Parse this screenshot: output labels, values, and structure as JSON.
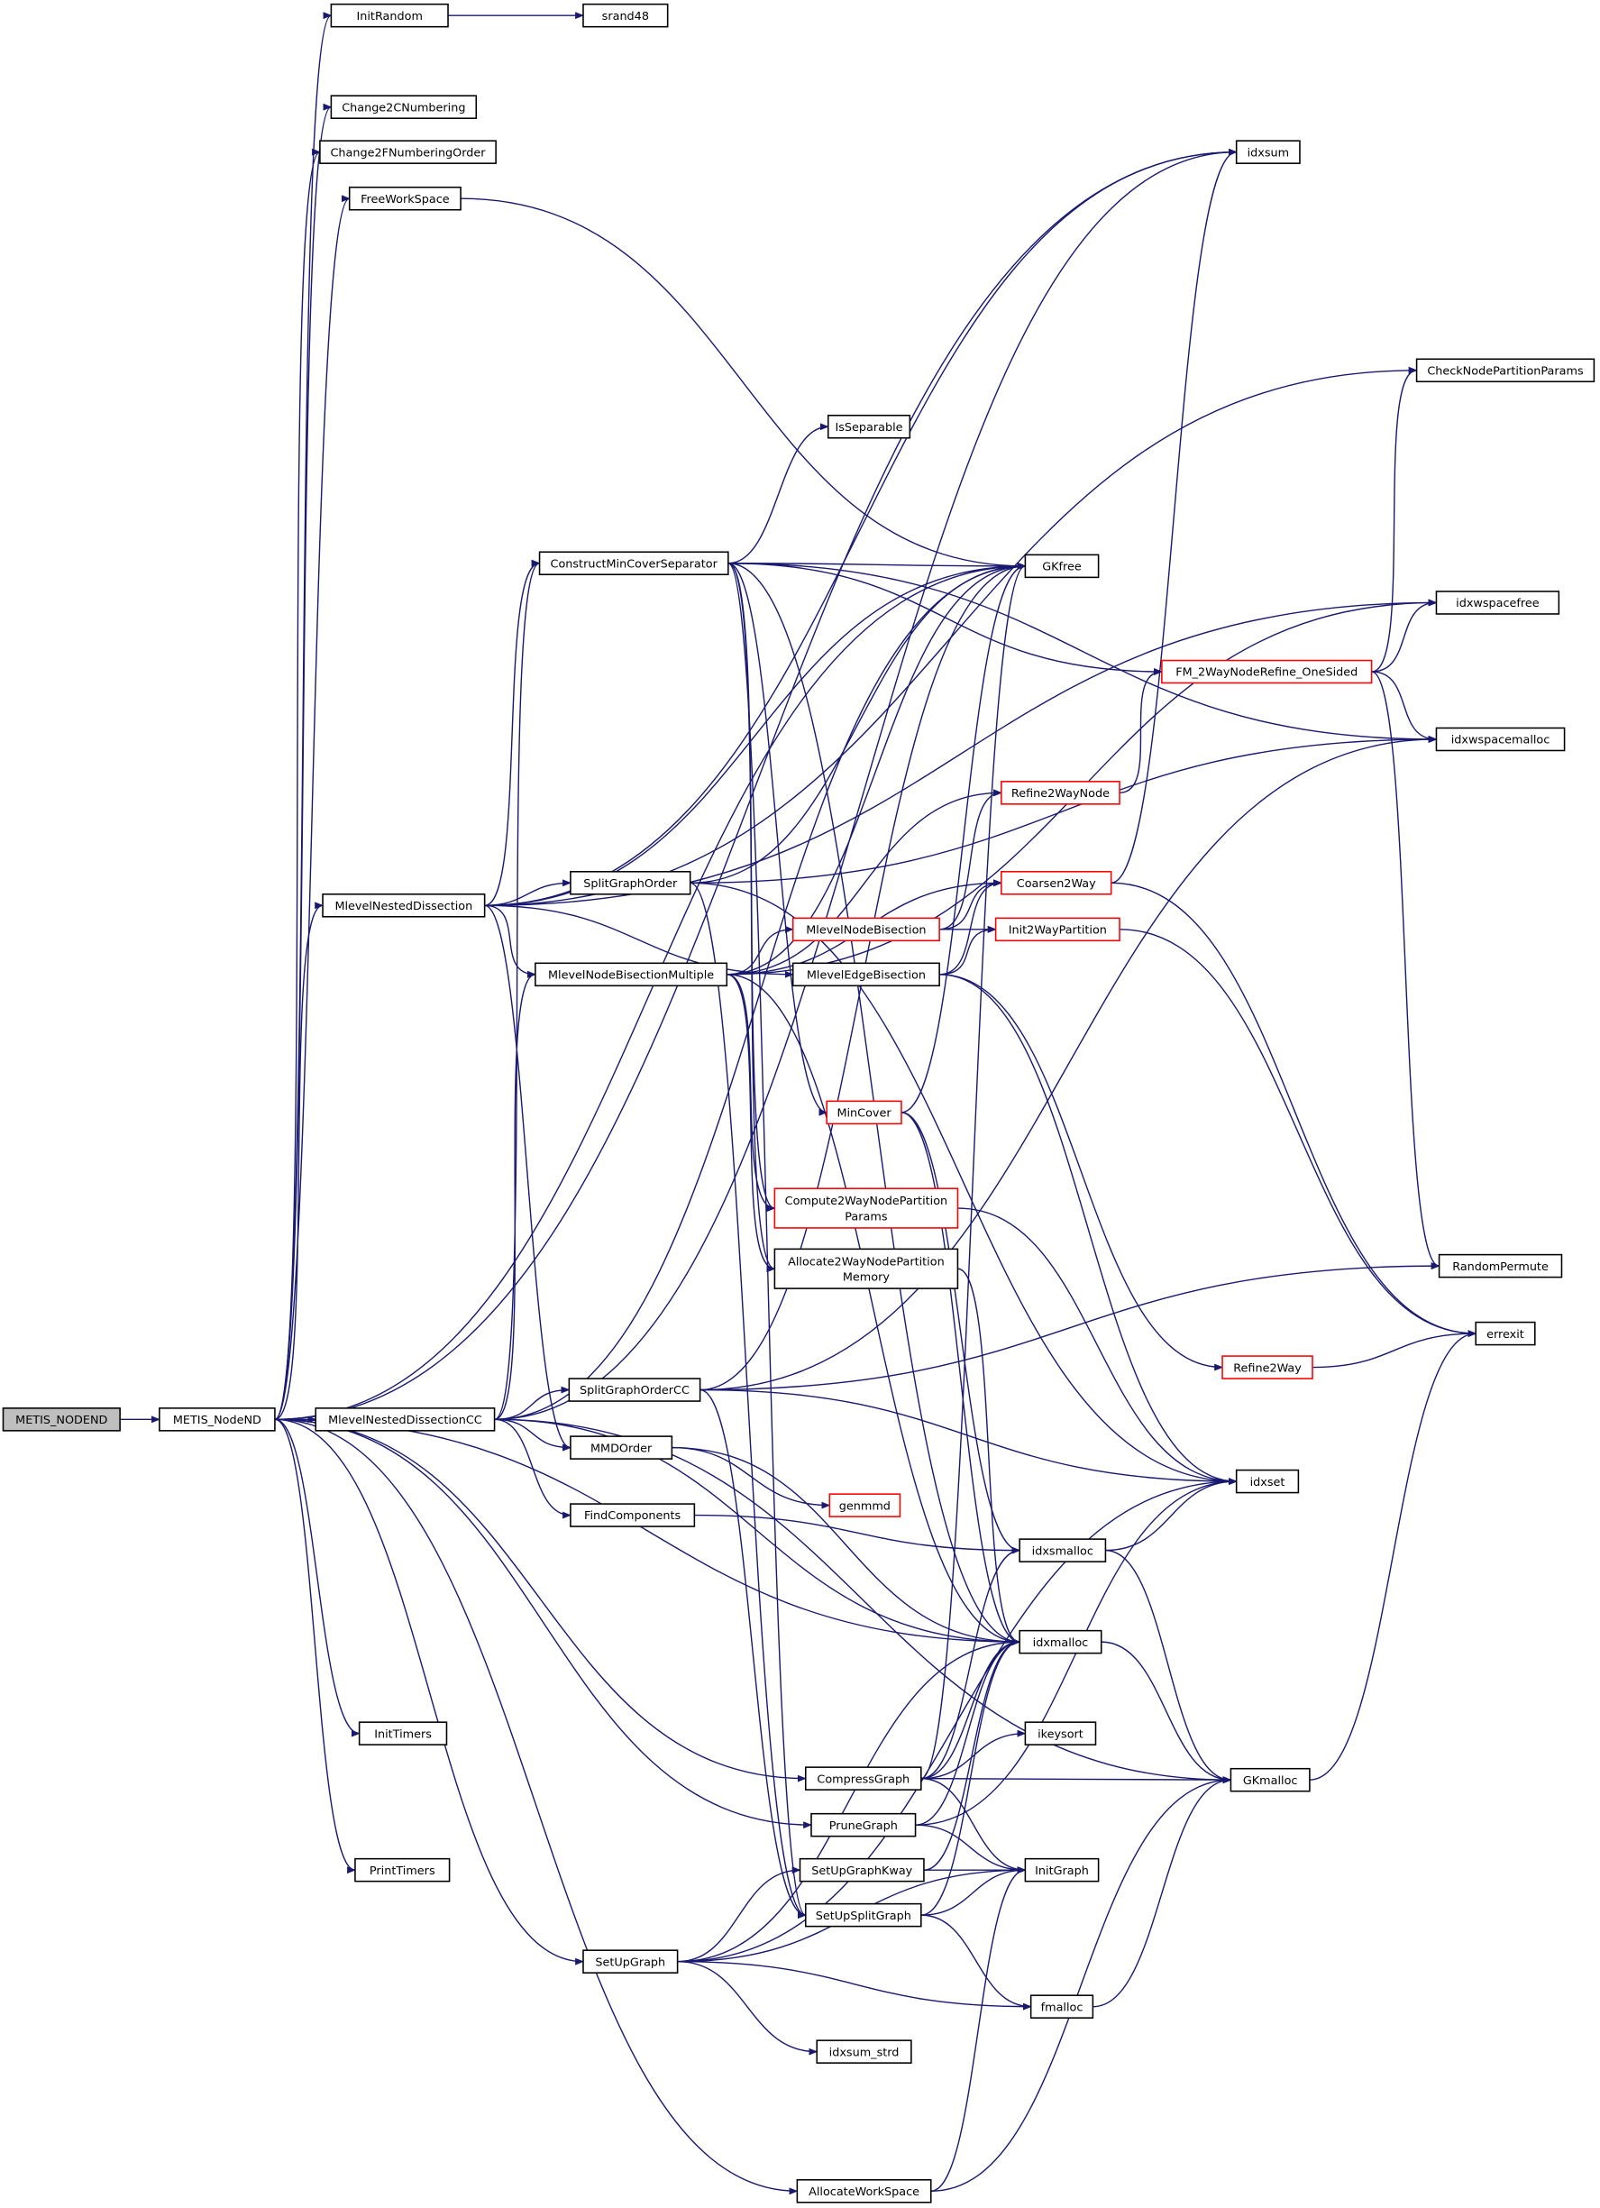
{
  "graph": {
    "type": "call-graph",
    "edge_color": "#191970",
    "highlight_border_color": "#ff0000",
    "root_fill": "#bfbfbf",
    "nodes": [
      {
        "id": "METIS_NODEND",
        "label": [
          "METIS_NODEND"
        ],
        "style": "root"
      },
      {
        "id": "METIS_NodeND",
        "label": [
          "METIS_NodeND"
        ]
      },
      {
        "id": "InitRandom",
        "label": [
          "InitRandom"
        ]
      },
      {
        "id": "srand48",
        "label": [
          "srand48"
        ]
      },
      {
        "id": "Change2CNumbering",
        "label": [
          "Change2CNumbering"
        ]
      },
      {
        "id": "Change2FNumberingOrder",
        "label": [
          "Change2FNumberingOrder"
        ]
      },
      {
        "id": "FreeWorkSpace",
        "label": [
          "FreeWorkSpace"
        ]
      },
      {
        "id": "idxsum",
        "label": [
          "idxsum"
        ]
      },
      {
        "id": "CheckNodePartitionParams",
        "label": [
          "CheckNodePartitionParams"
        ]
      },
      {
        "id": "IsSeparable",
        "label": [
          "IsSeparable"
        ]
      },
      {
        "id": "ConstructMinCoverSeparator",
        "label": [
          "ConstructMinCoverSeparator"
        ]
      },
      {
        "id": "GKfree",
        "label": [
          "GKfree"
        ]
      },
      {
        "id": "idxwspacefree",
        "label": [
          "idxwspacefree"
        ]
      },
      {
        "id": "FM_2WayNodeRefine_OneSided",
        "label": [
          "FM_2WayNodeRefine_OneSided"
        ],
        "style": "red"
      },
      {
        "id": "idxwspacemalloc",
        "label": [
          "idxwspacemalloc"
        ]
      },
      {
        "id": "Refine2WayNode",
        "label": [
          "Refine2WayNode"
        ],
        "style": "red"
      },
      {
        "id": "SplitGraphOrder",
        "label": [
          "SplitGraphOrder"
        ]
      },
      {
        "id": "Coarsen2Way",
        "label": [
          "Coarsen2Way"
        ],
        "style": "red"
      },
      {
        "id": "MlevelNestedDissection",
        "label": [
          "MlevelNestedDissection"
        ]
      },
      {
        "id": "MlevelNodeBisection",
        "label": [
          "MlevelNodeBisection"
        ],
        "style": "red"
      },
      {
        "id": "Init2WayPartition",
        "label": [
          "Init2WayPartition"
        ],
        "style": "red"
      },
      {
        "id": "MlevelNodeBisectionMultiple",
        "label": [
          "MlevelNodeBisectionMultiple"
        ]
      },
      {
        "id": "MlevelEdgeBisection",
        "label": [
          "MlevelEdgeBisection"
        ]
      },
      {
        "id": "MinCover",
        "label": [
          "MinCover"
        ],
        "style": "red"
      },
      {
        "id": "Compute2WayNodePartitionParams",
        "label": [
          "Compute2WayNodePartition",
          "Params"
        ],
        "style": "red"
      },
      {
        "id": "Allocate2WayNodePartitionMemory",
        "label": [
          "Allocate2WayNodePartition",
          "Memory"
        ]
      },
      {
        "id": "RandomPermute",
        "label": [
          "RandomPermute"
        ]
      },
      {
        "id": "errexit",
        "label": [
          "errexit"
        ]
      },
      {
        "id": "Refine2Way",
        "label": [
          "Refine2Way"
        ],
        "style": "red"
      },
      {
        "id": "SplitGraphOrderCC",
        "label": [
          "SplitGraphOrderCC"
        ]
      },
      {
        "id": "MlevelNestedDissectionCC",
        "label": [
          "MlevelNestedDissectionCC"
        ]
      },
      {
        "id": "MMDOrder",
        "label": [
          "MMDOrder"
        ]
      },
      {
        "id": "genmmd",
        "label": [
          "genmmd"
        ],
        "style": "red"
      },
      {
        "id": "idxset",
        "label": [
          "idxset"
        ]
      },
      {
        "id": "FindComponents",
        "label": [
          "FindComponents"
        ]
      },
      {
        "id": "idxsmalloc",
        "label": [
          "idxsmalloc"
        ]
      },
      {
        "id": "idxmalloc",
        "label": [
          "idxmalloc"
        ]
      },
      {
        "id": "InitTimers",
        "label": [
          "InitTimers"
        ]
      },
      {
        "id": "ikeysort",
        "label": [
          "ikeysort"
        ]
      },
      {
        "id": "CompressGraph",
        "label": [
          "CompressGraph"
        ]
      },
      {
        "id": "GKmalloc",
        "label": [
          "GKmalloc"
        ]
      },
      {
        "id": "PruneGraph",
        "label": [
          "PruneGraph"
        ]
      },
      {
        "id": "InitGraph",
        "label": [
          "InitGraph"
        ]
      },
      {
        "id": "PrintTimers",
        "label": [
          "PrintTimers"
        ]
      },
      {
        "id": "SetUpGraphKway",
        "label": [
          "SetUpGraphKway"
        ]
      },
      {
        "id": "SetUpSplitGraph",
        "label": [
          "SetUpSplitGraph"
        ]
      },
      {
        "id": "SetUpGraph",
        "label": [
          "SetUpGraph"
        ]
      },
      {
        "id": "fmalloc",
        "label": [
          "fmalloc"
        ]
      },
      {
        "id": "idxsum_strd",
        "label": [
          "idxsum_strd"
        ]
      },
      {
        "id": "AllocateWorkSpace",
        "label": [
          "AllocateWorkSpace"
        ]
      }
    ],
    "edges": [
      [
        "METIS_NODEND",
        "METIS_NodeND"
      ],
      [
        "METIS_NodeND",
        "InitRandom"
      ],
      [
        "METIS_NodeND",
        "idxsum"
      ],
      [
        "METIS_NodeND",
        "Change2CNumbering"
      ],
      [
        "METIS_NodeND",
        "Change2FNumberingOrder"
      ],
      [
        "METIS_NodeND",
        "FreeWorkSpace"
      ],
      [
        "METIS_NodeND",
        "GKfree"
      ],
      [
        "METIS_NodeND",
        "MlevelNestedDissection"
      ],
      [
        "METIS_NodeND",
        "MlevelNestedDissectionCC"
      ],
      [
        "METIS_NodeND",
        "idxmalloc"
      ],
      [
        "METIS_NodeND",
        "InitTimers"
      ],
      [
        "METIS_NodeND",
        "CompressGraph"
      ],
      [
        "METIS_NodeND",
        "PruneGraph"
      ],
      [
        "METIS_NodeND",
        "PrintTimers"
      ],
      [
        "METIS_NodeND",
        "SetUpGraph"
      ],
      [
        "METIS_NodeND",
        "AllocateWorkSpace"
      ],
      [
        "InitRandom",
        "srand48"
      ],
      [
        "FreeWorkSpace",
        "GKfree"
      ],
      [
        "MlevelNestedDissection",
        "idxsum"
      ],
      [
        "MlevelNestedDissection",
        "CheckNodePartitionParams"
      ],
      [
        "MlevelNestedDissection",
        "idxwspacefree"
      ],
      [
        "MlevelNestedDissection",
        "ConstructMinCoverSeparator"
      ],
      [
        "MlevelNestedDissection",
        "SplitGraphOrder"
      ],
      [
        "MlevelNestedDissection",
        "MlevelNodeBisectionMultiple"
      ],
      [
        "MlevelNestedDissection",
        "MlevelEdgeBisection"
      ],
      [
        "MlevelNestedDissection",
        "MMDOrder"
      ],
      [
        "MlevelNestedDissection",
        "GKfree"
      ],
      [
        "ConstructMinCoverSeparator",
        "IsSeparable"
      ],
      [
        "ConstructMinCoverSeparator",
        "GKfree"
      ],
      [
        "ConstructMinCoverSeparator",
        "idxwspacemalloc"
      ],
      [
        "ConstructMinCoverSeparator",
        "FM_2WayNodeRefine_OneSided"
      ],
      [
        "ConstructMinCoverSeparator",
        "MinCover"
      ],
      [
        "ConstructMinCoverSeparator",
        "Compute2WayNodePartitionParams"
      ],
      [
        "ConstructMinCoverSeparator",
        "Allocate2WayNodePartitionMemory"
      ],
      [
        "ConstructMinCoverSeparator",
        "idxmalloc"
      ],
      [
        "ConstructMinCoverSeparator",
        "SetUpSplitGraph"
      ],
      [
        "MlevelNodeBisectionMultiple",
        "MlevelNodeBisection"
      ],
      [
        "MlevelNodeBisectionMultiple",
        "Coarsen2Way"
      ],
      [
        "MlevelNodeBisectionMultiple",
        "Refine2WayNode"
      ],
      [
        "MlevelNodeBisectionMultiple",
        "GKfree"
      ],
      [
        "MlevelNodeBisectionMultiple",
        "idxwspacefree"
      ],
      [
        "MlevelNodeBisectionMultiple",
        "Compute2WayNodePartitionParams"
      ],
      [
        "MlevelNodeBisectionMultiple",
        "Allocate2WayNodePartitionMemory"
      ],
      [
        "MlevelNodeBisectionMultiple",
        "idxmalloc"
      ],
      [
        "MlevelNodeBisection",
        "Coarsen2Way"
      ],
      [
        "MlevelNodeBisection",
        "Init2WayPartition"
      ],
      [
        "MlevelNodeBisection",
        "Refine2WayNode"
      ],
      [
        "MlevelEdgeBisection",
        "Coarsen2Way"
      ],
      [
        "MlevelEdgeBisection",
        "Init2WayPartition"
      ],
      [
        "MlevelEdgeBisection",
        "Refine2Way"
      ],
      [
        "MlevelEdgeBisection",
        "idxset"
      ],
      [
        "SplitGraphOrder",
        "GKfree"
      ],
      [
        "SplitGraphOrder",
        "idxwspacemalloc"
      ],
      [
        "SplitGraphOrder",
        "SetUpSplitGraph"
      ],
      [
        "SplitGraphOrder",
        "idxset"
      ],
      [
        "Refine2WayNode",
        "FM_2WayNodeRefine_OneSided"
      ],
      [
        "FM_2WayNodeRefine_OneSided",
        "CheckNodePartitionParams"
      ],
      [
        "FM_2WayNodeRefine_OneSided",
        "idxwspacefree"
      ],
      [
        "FM_2WayNodeRefine_OneSided",
        "idxwspacemalloc"
      ],
      [
        "FM_2WayNodeRefine_OneSided",
        "RandomPermute"
      ],
      [
        "Coarsen2Way",
        "idxsum"
      ],
      [
        "Coarsen2Way",
        "errexit"
      ],
      [
        "Init2WayPartition",
        "errexit"
      ],
      [
        "MinCover",
        "GKfree"
      ],
      [
        "MinCover",
        "idxmalloc"
      ],
      [
        "MinCover",
        "idxsmalloc"
      ],
      [
        "Compute2WayNodePartitionParams",
        "idxset"
      ],
      [
        "Allocate2WayNodePartitionMemory",
        "idxmalloc"
      ],
      [
        "Refine2Way",
        "errexit"
      ],
      [
        "SplitGraphOrderCC",
        "RandomPermute"
      ],
      [
        "SplitGraphOrderCC",
        "idxwspacemalloc"
      ],
      [
        "SplitGraphOrderCC",
        "idxset"
      ],
      [
        "SplitGraphOrderCC",
        "SetUpSplitGraph"
      ],
      [
        "SplitGraphOrderCC",
        "GKfree"
      ],
      [
        "MlevelNestedDissectionCC",
        "SplitGraphOrderCC"
      ],
      [
        "MlevelNestedDissectionCC",
        "MMDOrder"
      ],
      [
        "MlevelNestedDissectionCC",
        "FindComponents"
      ],
      [
        "MlevelNestedDissectionCC",
        "idxmalloc"
      ],
      [
        "MlevelNestedDissectionCC",
        "MlevelNodeBisectionMultiple"
      ],
      [
        "MlevelNestedDissectionCC",
        "ConstructMinCoverSeparator"
      ],
      [
        "MlevelNestedDissectionCC",
        "GKfree"
      ],
      [
        "MlevelNestedDissectionCC",
        "idxsum"
      ],
      [
        "MlevelNestedDissectionCC",
        "GKmalloc"
      ],
      [
        "MMDOrder",
        "genmmd"
      ],
      [
        "MMDOrder",
        "idxmalloc"
      ],
      [
        "FindComponents",
        "idxsmalloc"
      ],
      [
        "idxsmalloc",
        "idxset"
      ],
      [
        "idxsmalloc",
        "GKmalloc"
      ],
      [
        "idxmalloc",
        "GKmalloc"
      ],
      [
        "GKmalloc",
        "errexit"
      ],
      [
        "CompressGraph",
        "idxmalloc"
      ],
      [
        "CompressGraph",
        "idxsmalloc"
      ],
      [
        "CompressGraph",
        "ikeysort"
      ],
      [
        "CompressGraph",
        "GKmalloc"
      ],
      [
        "CompressGraph",
        "InitGraph"
      ],
      [
        "CompressGraph",
        "GKfree"
      ],
      [
        "PruneGraph",
        "idxmalloc"
      ],
      [
        "PruneGraph",
        "InitGraph"
      ],
      [
        "PruneGraph",
        "idxset"
      ],
      [
        "SetUpGraphKway",
        "idxmalloc"
      ],
      [
        "SetUpGraphKway",
        "InitGraph"
      ],
      [
        "SetUpSplitGraph",
        "idxmalloc"
      ],
      [
        "SetUpSplitGraph",
        "InitGraph"
      ],
      [
        "SetUpSplitGraph",
        "fmalloc"
      ],
      [
        "SetUpGraph",
        "SetUpGraphKway"
      ],
      [
        "SetUpGraph",
        "idxmalloc"
      ],
      [
        "SetUpGraph",
        "idxset"
      ],
      [
        "SetUpGraph",
        "fmalloc"
      ],
      [
        "SetUpGraph",
        "idxsum_strd"
      ],
      [
        "SetUpGraph",
        "InitGraph"
      ],
      [
        "fmalloc",
        "GKmalloc"
      ],
      [
        "AllocateWorkSpace",
        "GKmalloc"
      ],
      [
        "AllocateWorkSpace",
        "InitGraph"
      ]
    ]
  }
}
